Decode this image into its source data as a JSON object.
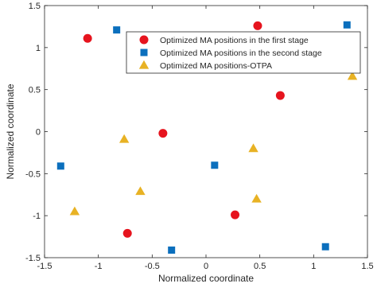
{
  "chart_data": {
    "type": "scatter",
    "xlabel": "Normalized coordinate",
    "ylabel": "Normalized coordinate",
    "xlim": [
      -1.5,
      1.5
    ],
    "ylim": [
      -1.5,
      1.5
    ],
    "xticks": [
      {
        "value": -1.5,
        "label": "-1.5"
      },
      {
        "value": -1.0,
        "label": "-1"
      },
      {
        "value": -0.5,
        "label": "-0.5"
      },
      {
        "value": 0.0,
        "label": "0"
      },
      {
        "value": 0.5,
        "label": "0.5"
      },
      {
        "value": 1.0,
        "label": "1"
      },
      {
        "value": 1.5,
        "label": "1.5"
      }
    ],
    "yticks": [
      {
        "value": -1.5,
        "label": "-1.5"
      },
      {
        "value": -1.0,
        "label": "-1"
      },
      {
        "value": -0.5,
        "label": "-0.5"
      },
      {
        "value": 0.0,
        "label": "0"
      },
      {
        "value": 0.5,
        "label": "0.5"
      },
      {
        "value": 1.0,
        "label": "1"
      },
      {
        "value": 1.5,
        "label": "1.5"
      }
    ],
    "grid": false,
    "legend_position": "top-right",
    "series": [
      {
        "name": "Optimized MA positions in the first stage",
        "marker": "circle",
        "color": "#e6141e",
        "points": [
          {
            "x": -1.1,
            "y": 1.11
          },
          {
            "x": 0.48,
            "y": 1.26
          },
          {
            "x": 0.69,
            "y": 0.43
          },
          {
            "x": -0.4,
            "y": -0.02
          },
          {
            "x": 0.27,
            "y": -0.99
          },
          {
            "x": -0.73,
            "y": -1.21
          }
        ]
      },
      {
        "name": "Optimized MA positions in the second stage",
        "marker": "square",
        "color": "#0b6fbd",
        "points": [
          {
            "x": -0.83,
            "y": 1.21
          },
          {
            "x": 1.31,
            "y": 1.27
          },
          {
            "x": -1.35,
            "y": -0.41
          },
          {
            "x": 0.08,
            "y": -0.4
          },
          {
            "x": -0.32,
            "y": -1.41
          },
          {
            "x": 1.11,
            "y": -1.37
          }
        ]
      },
      {
        "name": "Optimized MA positions-OTPA",
        "marker": "triangle",
        "color": "#e8b224",
        "points": [
          {
            "x": 1.36,
            "y": 0.66
          },
          {
            "x": -0.76,
            "y": -0.09
          },
          {
            "x": 0.44,
            "y": -0.2
          },
          {
            "x": -0.61,
            "y": -0.71
          },
          {
            "x": 0.47,
            "y": -0.8
          },
          {
            "x": -1.22,
            "y": -0.95
          }
        ]
      }
    ]
  }
}
